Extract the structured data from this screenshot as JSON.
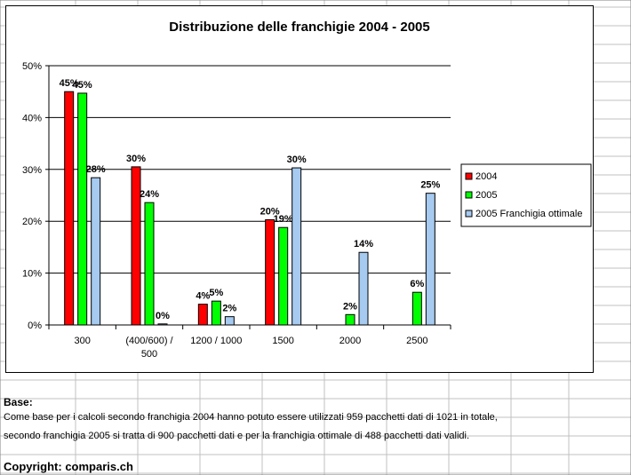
{
  "chart_data": {
    "type": "bar",
    "title": "Distribuzione delle franchigie 2004 - 2005",
    "categories": [
      "300",
      "(400/600) /\n500",
      "1200 / 1000",
      "1500",
      "2000",
      "2500"
    ],
    "ylim": [
      0,
      50
    ],
    "yticks": [
      "0%",
      "10%",
      "20%",
      "30%",
      "40%",
      "50%"
    ],
    "ytick_values": [
      0,
      10,
      20,
      30,
      40,
      50
    ],
    "grid": true,
    "legend_position": "right",
    "series": [
      {
        "name": "2004",
        "color": "#ff0000",
        "values": [
          45,
          30.5,
          4,
          20.3,
          null,
          null
        ],
        "labels": [
          "45%",
          "30%",
          "4%",
          "20%",
          "",
          ""
        ]
      },
      {
        "name": "2005",
        "color": "#00ff00",
        "values": [
          44.7,
          23.6,
          4.6,
          18.8,
          2,
          6.3
        ],
        "labels": [
          "45%",
          "24%",
          "5%",
          "19%",
          "2%",
          "6%"
        ]
      },
      {
        "name": "2005 Franchigia ottimale",
        "color": "#a6caf0",
        "values": [
          28.4,
          0.2,
          1.6,
          30.3,
          14,
          25.4
        ],
        "labels": [
          "28%",
          "0%",
          "2%",
          "30%",
          "14%",
          "25%"
        ]
      }
    ]
  },
  "notes": {
    "title": "Base:",
    "line1": "Come base per i calcoli secondo franchigia 2004 hanno potuto essere utilizzati 959 pacchetti dati di 1021 in totale,",
    "line2": "secondo franchigia 2005 si tratta di 900 pacchetti dati e per la franchigia ottimale di 488 pacchetti dati validi."
  },
  "copyright": "Copyright: comparis.ch"
}
